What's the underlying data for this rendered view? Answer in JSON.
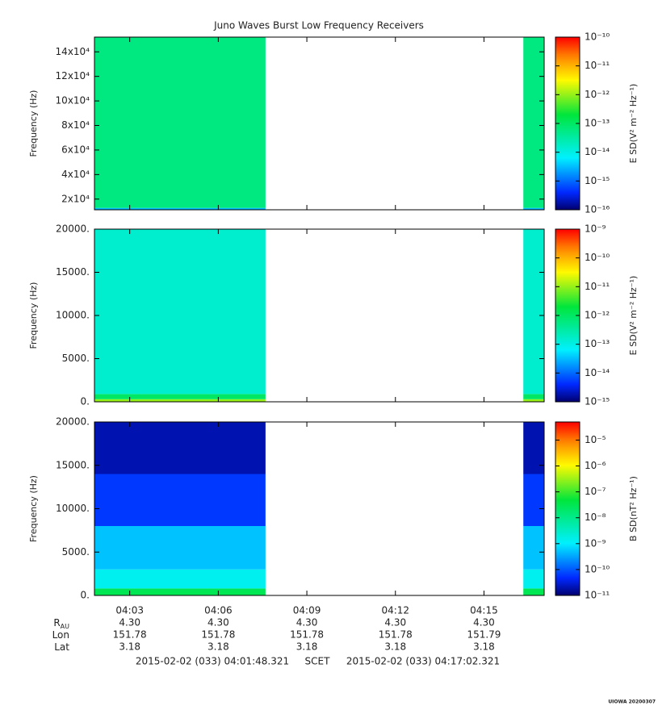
{
  "title": "Juno Waves Burst Low Frequency Receivers",
  "credit": "UIOWA 20200307",
  "xlim": [
    "2015-02-02T04:01:48.321",
    "2015-02-02T04:17:02.321"
  ],
  "xticks": [
    {
      "value": "2015-02-02T04:03:00",
      "label": "04:03"
    },
    {
      "value": "2015-02-02T04:06:00",
      "label": "04:06"
    },
    {
      "value": "2015-02-02T04:09:00",
      "label": "04:09"
    },
    {
      "value": "2015-02-02T04:12:00",
      "label": "04:12"
    },
    {
      "value": "2015-02-02T04:15:00",
      "label": "04:15"
    }
  ],
  "ephemeris": {
    "rows": [
      {
        "label": "R",
        "sub": "AU",
        "values": [
          "4.30",
          "4.30",
          "4.30",
          "4.30",
          "4.30"
        ]
      },
      {
        "label": "Lon",
        "values": [
          "151.78",
          "151.78",
          "151.78",
          "151.78",
          "151.79"
        ]
      },
      {
        "label": "Lat",
        "values": [
          "3.18",
          "3.18",
          "3.18",
          "3.18",
          "3.18"
        ]
      }
    ]
  },
  "footer": {
    "start": "2015-02-02 (033) 04:01:48.321",
    "frame": "SCET",
    "end": "2015-02-02 (033) 04:17:02.321"
  },
  "chart_data": [
    {
      "type": "spectrogram",
      "ylabel": "Frequency (Hz)",
      "ylim": [
        11300,
        152000
      ],
      "yticks": [
        {
          "value": 20000,
          "label": "2x10⁴"
        },
        {
          "value": 40000,
          "label": "4x10⁴"
        },
        {
          "value": 60000,
          "label": "6x10⁴"
        },
        {
          "value": 80000,
          "label": "8x10⁴"
        },
        {
          "value": 100000,
          "label": "10x10⁴"
        },
        {
          "value": 120000,
          "label": "12x10⁴"
        },
        {
          "value": 140000,
          "label": "14x10⁴"
        }
      ],
      "x": [
        "2015-02-02T04:01:48.321",
        "2015-02-02T04:07:36",
        "2015-02-02T04:16:20",
        "2015-02-02T04:17:02.321"
      ],
      "bins": [
        11300,
        12800,
        152000
      ],
      "values": [
        [
          3e-15,
          null,
          3e-15
        ],
        [
          6e-14,
          null,
          6e-14
        ]
      ],
      "clabel": "E SD(V² m⁻² Hz⁻¹)",
      "clog": true,
      "clim": [
        1e-16,
        1e-10
      ],
      "cticks": [
        {
          "value": 1e-16,
          "label": "10⁻¹⁶"
        },
        {
          "value": 1e-15,
          "label": "10⁻¹⁵"
        },
        {
          "value": 1e-14,
          "label": "10⁻¹⁴"
        },
        {
          "value": 1e-13,
          "label": "10⁻¹³"
        },
        {
          "value": 1e-12,
          "label": "10⁻¹²"
        },
        {
          "value": 1e-11,
          "label": "10⁻¹¹"
        },
        {
          "value": 1e-10,
          "label": "10⁻¹⁰"
        }
      ]
    },
    {
      "type": "spectrogram",
      "ylabel": "Frequency (Hz)",
      "ylim": [
        0,
        20000
      ],
      "yticks": [
        {
          "value": 0,
          "label": "0."
        },
        {
          "value": 5000,
          "label": "5000."
        },
        {
          "value": 10000,
          "label": "10000."
        },
        {
          "value": 15000,
          "label": "15000."
        },
        {
          "value": 20000,
          "label": "20000."
        }
      ],
      "x": [
        "2015-02-02T04:01:48.321",
        "2015-02-02T04:07:36",
        "2015-02-02T04:16:20",
        "2015-02-02T04:17:02.321"
      ],
      "bins": [
        0,
        300,
        900,
        20000
      ],
      "values": [
        [
          1e-11,
          null,
          1e-11
        ],
        [
          1e-12,
          null,
          1e-12
        ],
        [
          1.5e-13,
          null,
          1.5e-13
        ]
      ],
      "clabel": "E SD(V² m⁻² Hz⁻¹)",
      "clog": true,
      "clim": [
        1e-15,
        1e-09
      ],
      "cticks": [
        {
          "value": 1e-15,
          "label": "10⁻¹⁵"
        },
        {
          "value": 1e-14,
          "label": "10⁻¹⁴"
        },
        {
          "value": 1e-13,
          "label": "10⁻¹³"
        },
        {
          "value": 1e-12,
          "label": "10⁻¹²"
        },
        {
          "value": 1e-11,
          "label": "10⁻¹¹"
        },
        {
          "value": 1e-10,
          "label": "10⁻¹⁰"
        },
        {
          "value": 1e-09,
          "label": "10⁻⁹"
        }
      ]
    },
    {
      "type": "spectrogram",
      "ylabel": "Frequency (Hz)",
      "ylim": [
        0,
        20000
      ],
      "yticks": [
        {
          "value": 0,
          "label": "0."
        },
        {
          "value": 5000,
          "label": "5000."
        },
        {
          "value": 10000,
          "label": "10000."
        },
        {
          "value": 15000,
          "label": "15000."
        },
        {
          "value": 20000,
          "label": "20000."
        }
      ],
      "x": [
        "2015-02-02T04:01:48.321",
        "2015-02-02T04:07:36",
        "2015-02-02T04:16:20",
        "2015-02-02T04:17:02.321"
      ],
      "bins": [
        0,
        800,
        3000,
        8000,
        14000,
        20000
      ],
      "values": [
        [
          3e-08,
          null,
          3e-08
        ],
        [
          1.4e-09,
          null,
          1.4e-09
        ],
        [
          5e-10,
          null,
          5e-10
        ],
        [
          6e-11,
          null,
          6e-11
        ],
        [
          2e-11,
          null,
          2e-11
        ]
      ],
      "clabel": "B SD(nT² Hz⁻¹)",
      "clog": true,
      "clim": [
        1e-11,
        5e-05
      ],
      "cticks": [
        {
          "value": 1e-11,
          "label": "10⁻¹¹"
        },
        {
          "value": 1e-10,
          "label": "10⁻¹⁰"
        },
        {
          "value": 1e-09,
          "label": "10⁻⁹"
        },
        {
          "value": 1e-08,
          "label": "10⁻⁸"
        },
        {
          "value": 1e-07,
          "label": "10⁻⁷"
        },
        {
          "value": 1e-06,
          "label": "10⁻⁶"
        },
        {
          "value": 1e-05,
          "label": "10⁻⁵"
        }
      ]
    }
  ]
}
